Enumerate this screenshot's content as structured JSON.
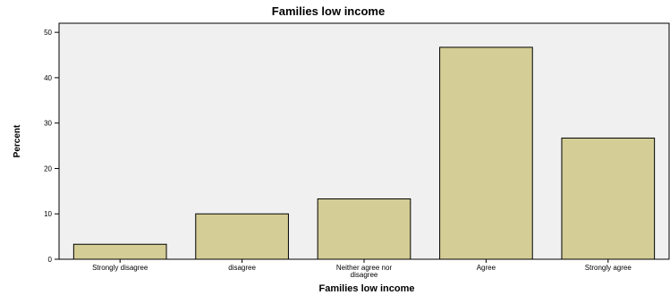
{
  "chart_data": {
    "type": "bar",
    "title": "Families low income",
    "xlabel": "Families low income",
    "ylabel": "Percent",
    "categories": [
      [
        "Strongly disagree"
      ],
      [
        "disagree"
      ],
      [
        "Neither agree nor",
        "disagree"
      ],
      [
        "Agree"
      ],
      [
        "Strongly agree"
      ]
    ],
    "values": [
      3.3,
      10.0,
      13.3,
      46.7,
      26.7
    ],
    "ylim": [
      0,
      52
    ],
    "yticks": [
      0,
      10,
      20,
      30,
      40,
      50
    ],
    "grid": false,
    "legend": "none",
    "colors": {
      "bar_fill": "#d4cd95",
      "bar_stroke": "#000000",
      "plot_background": "#f0f0f0"
    }
  }
}
